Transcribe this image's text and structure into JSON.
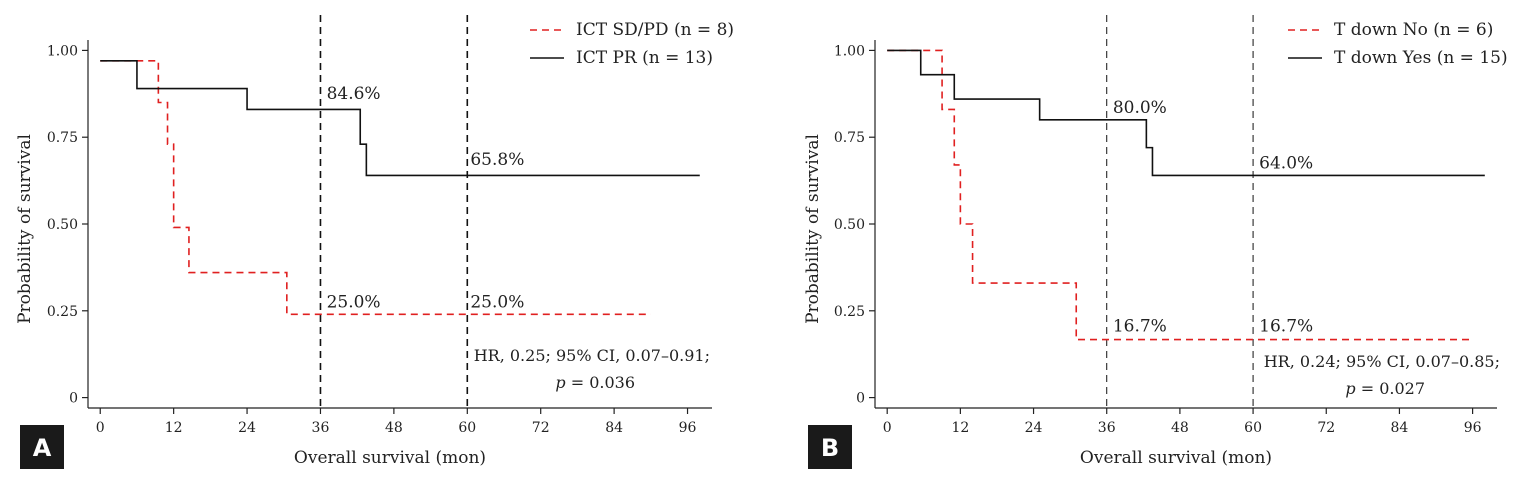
{
  "chart_data": [
    {
      "panel": "A",
      "type": "line",
      "step": true,
      "xlabel": "Overall survival (mon)",
      "ylabel": "Probability of survival",
      "xticks": [
        0,
        12,
        24,
        36,
        48,
        60,
        72,
        84,
        96
      ],
      "yticks": [
        0,
        0.25,
        0.5,
        0.75,
        1.0
      ],
      "ytick_labels": [
        "0",
        "0.25",
        "0.50",
        "0.75",
        "1.00"
      ],
      "xlim": [
        -2,
        100
      ],
      "ylim": [
        -0.03,
        1.03
      ],
      "vlines": [
        36,
        60
      ],
      "series": [
        {
          "name": "ICT SD/PD (n = 8)",
          "style": "dashed",
          "color": "#e02020",
          "x": [
            0,
            9.5,
            11,
            12,
            13,
            14.5,
            30.5,
            90
          ],
          "y": [
            0.97,
            0.85,
            0.73,
            0.49,
            0.49,
            0.36,
            0.24,
            0.24
          ]
        },
        {
          "name": "ICT PR (n = 13)",
          "style": "solid",
          "color": "#111111",
          "x": [
            0,
            6,
            24,
            42.5,
            43.5,
            98
          ],
          "y": [
            0.97,
            0.89,
            0.83,
            0.73,
            0.64,
            0.64
          ]
        }
      ],
      "annotations": [
        {
          "text": "84.6%",
          "x": 37,
          "y": 0.86
        },
        {
          "text": "65.8%",
          "x": 60.5,
          "y": 0.67
        },
        {
          "text": "25.0%",
          "x": 37,
          "y": 0.26
        },
        {
          "text": "25.0%",
          "x": 60.5,
          "y": 0.26
        }
      ],
      "hr_line1": "HR, 0.25; 95% CI, 0.07–0.91;",
      "hr_p_label": "p",
      "hr_p_value": " = 0.036"
    },
    {
      "panel": "B",
      "type": "line",
      "step": true,
      "xlabel": "Overall survival (mon)",
      "ylabel": "Probability of survival",
      "xticks": [
        0,
        12,
        24,
        36,
        48,
        60,
        72,
        84,
        96
      ],
      "yticks": [
        0,
        0.25,
        0.5,
        0.75,
        1.0
      ],
      "ytick_labels": [
        "0",
        "0.25",
        "0.50",
        "0.75",
        "1.00"
      ],
      "xlim": [
        -2,
        100
      ],
      "ylim": [
        -0.03,
        1.03
      ],
      "vlines": [
        36,
        60
      ],
      "series": [
        {
          "name": "T down No (n = 6)",
          "style": "dashed",
          "color": "#e02020",
          "x": [
            0,
            9,
            11,
            12,
            14,
            31,
            96
          ],
          "y": [
            1.0,
            0.83,
            0.67,
            0.5,
            0.33,
            0.167,
            0.167
          ]
        },
        {
          "name": "T down Yes (n = 15)",
          "style": "solid",
          "color": "#111111",
          "x": [
            0,
            5.5,
            11,
            25,
            42.5,
            43.5,
            98
          ],
          "y": [
            1.0,
            0.93,
            0.86,
            0.8,
            0.72,
            0.64,
            0.64
          ]
        }
      ],
      "annotations": [
        {
          "text": "80.0%",
          "x": 37,
          "y": 0.82
        },
        {
          "text": "64.0%",
          "x": 61,
          "y": 0.66
        },
        {
          "text": "16.7%",
          "x": 37,
          "y": 0.19
        },
        {
          "text": "16.7%",
          "x": 61,
          "y": 0.19
        }
      ],
      "hr_line1": "HR, 0.24; 95% CI, 0.07–0.85;",
      "hr_p_label": "p",
      "hr_p_value": " = 0.027"
    }
  ]
}
